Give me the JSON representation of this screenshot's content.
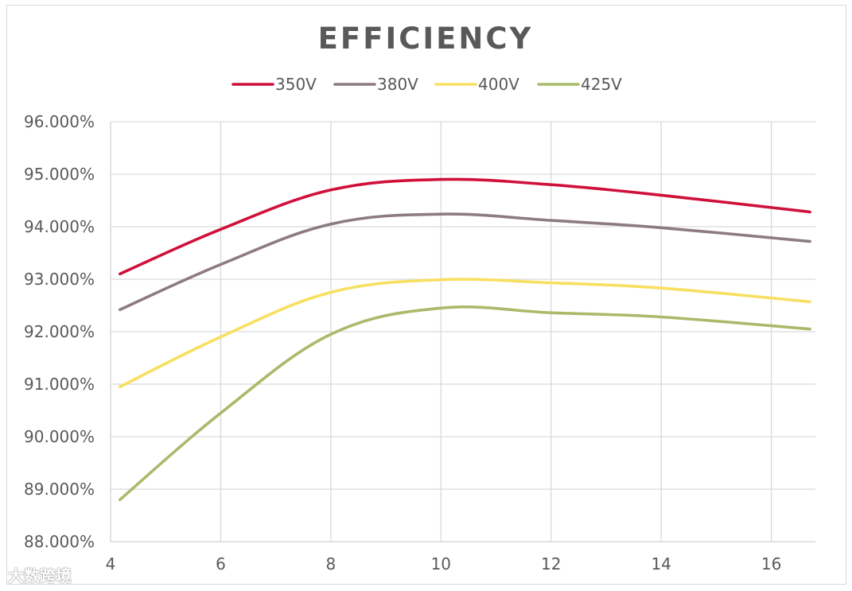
{
  "chart_data": {
    "type": "line",
    "title": "EFFICIENCY",
    "xlabel": "",
    "ylabel": "",
    "xlim": [
      4,
      16.8
    ],
    "ylim": [
      88,
      96
    ],
    "x_ticks": [
      4,
      6,
      8,
      10,
      12,
      14,
      16
    ],
    "x_tick_labels": [
      "4",
      "6",
      "8",
      "10",
      "12",
      "14",
      "16"
    ],
    "y_ticks": [
      88,
      89,
      90,
      91,
      92,
      93,
      94,
      95,
      96
    ],
    "y_tick_labels": [
      "88.000%",
      "89.000%",
      "90.000%",
      "91.000%",
      "92.000%",
      "93.000%",
      "94.000%",
      "95.000%",
      "96.000%"
    ],
    "grid": true,
    "legend_position": "top-center",
    "smooth": true,
    "x": [
      4.17,
      6,
      8,
      10,
      12,
      14,
      16.7
    ],
    "series": [
      {
        "name": "350V",
        "color": "#d0103a",
        "values": [
          93.1,
          93.95,
          94.7,
          94.9,
          94.8,
          94.6,
          94.28
        ]
      },
      {
        "name": "380V",
        "color": "#8c7c80",
        "values": [
          92.42,
          93.28,
          94.05,
          94.24,
          94.12,
          93.98,
          93.72
        ]
      },
      {
        "name": "400V",
        "color": "#f7e061",
        "values": [
          90.95,
          91.9,
          92.75,
          92.99,
          92.93,
          92.83,
          92.57
        ]
      },
      {
        "name": "425V",
        "color": "#a9ba6a",
        "values": [
          88.8,
          90.45,
          91.95,
          92.45,
          92.36,
          92.28,
          92.05
        ]
      }
    ]
  },
  "title_color": "#595959",
  "text_color": "#595959",
  "grid_color": "#d9d9d9",
  "watermark": "大数跨境"
}
